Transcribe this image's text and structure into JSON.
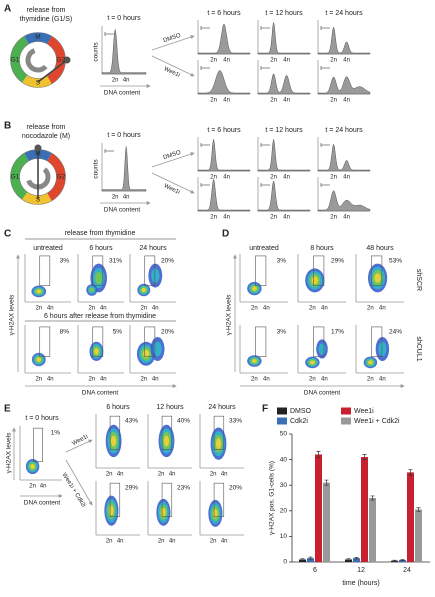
{
  "panel_a": {
    "label": "A",
    "title": [
      "release from",
      "thymidine (G1/S)"
    ],
    "phases": [
      "G1",
      "S",
      "G2",
      "M"
    ],
    "t0": "t = 0 hours",
    "y_label": "counts",
    "x_label": "DNA content",
    "ploidy": [
      "2n",
      "4n"
    ],
    "timepoints": [
      "t = 6 hours",
      "t = 12 hours",
      "t = 24 hours"
    ],
    "treatments": [
      "DMSO",
      "Wee1i"
    ]
  },
  "panel_b": {
    "label": "B",
    "title": [
      "release from",
      "nocodazole (M)"
    ],
    "phases": [
      "G1",
      "S",
      "G2",
      "M"
    ],
    "t0": "t = 0 hours",
    "y_label": "counts",
    "x_label": "DNA content",
    "ploidy": [
      "2n",
      "4n"
    ],
    "timepoints": [
      "t = 6 hours",
      "t = 12 hours",
      "t = 24 hours"
    ],
    "treatments": [
      "DMSO",
      "Wee1i"
    ]
  },
  "panel_c": {
    "label": "C",
    "header": "release from thymidine",
    "subheader": "6 hours after release from thymidine",
    "columns": [
      "untreated",
      "6 hours",
      "24 hours"
    ],
    "percentages": [
      [
        "3%",
        "31%",
        "20%"
      ],
      [
        "8%",
        "5%",
        "20%"
      ]
    ],
    "y_label": "γ-H2AX levels",
    "x_label": "DNA content",
    "ploidy": [
      "2n",
      "4n"
    ]
  },
  "panel_d": {
    "label": "D",
    "columns": [
      "untreated",
      "8 hours",
      "48 hours"
    ],
    "rows": [
      "shSCR",
      "shCUL1"
    ],
    "percentages": [
      [
        "3%",
        "29%",
        "53%"
      ],
      [
        "3%",
        "17%",
        "24%"
      ]
    ],
    "y_label": "γ-H2AX levels",
    "x_label": "DNA content",
    "ploidy": [
      "2n",
      "4n"
    ]
  },
  "panel_e": {
    "label": "E",
    "t0": "t = 0 hours",
    "t0_percentage": "1%",
    "y_label": "γ-H2AX levels",
    "x_label": "DNA content",
    "ploidy": [
      "2n",
      "4n"
    ],
    "columns": [
      "6 hours",
      "12 hours",
      "24 hours"
    ],
    "rows": [
      "Wee1i",
      "Wee1i + Cdk2i"
    ],
    "percentages": [
      [
        "43%",
        "40%",
        "33%"
      ],
      [
        "29%",
        "23%",
        "20%"
      ]
    ]
  },
  "chart_data": {
    "type": "bar",
    "panel_label": "F",
    "y_label": "γ-H2AX pos. G1-cells (%)",
    "x_label": "time (hours)",
    "categories": [
      "6",
      "12",
      "24"
    ],
    "series": [
      {
        "name": "DMSO",
        "color": "#222222",
        "values": [
          1,
          1,
          0.5
        ],
        "errors": [
          0.3,
          0.3,
          0.2
        ]
      },
      {
        "name": "Cdk2i",
        "color": "#3a6fb7",
        "values": [
          1.5,
          1.5,
          0.8
        ],
        "errors": [
          0.4,
          0.3,
          0.2
        ]
      },
      {
        "name": "Wee1i",
        "color": "#c8202f",
        "values": [
          42,
          41,
          35
        ],
        "errors": [
          1.2,
          1,
          1.1
        ]
      },
      {
        "name": "Wee1i + Cdk2i",
        "color": "#999999",
        "values": [
          31,
          25,
          20.5
        ],
        "errors": [
          1,
          0.8,
          0.7
        ]
      }
    ],
    "ylim": [
      0,
      50
    ],
    "yticks": [
      0,
      10,
      20,
      30,
      40,
      50
    ]
  }
}
